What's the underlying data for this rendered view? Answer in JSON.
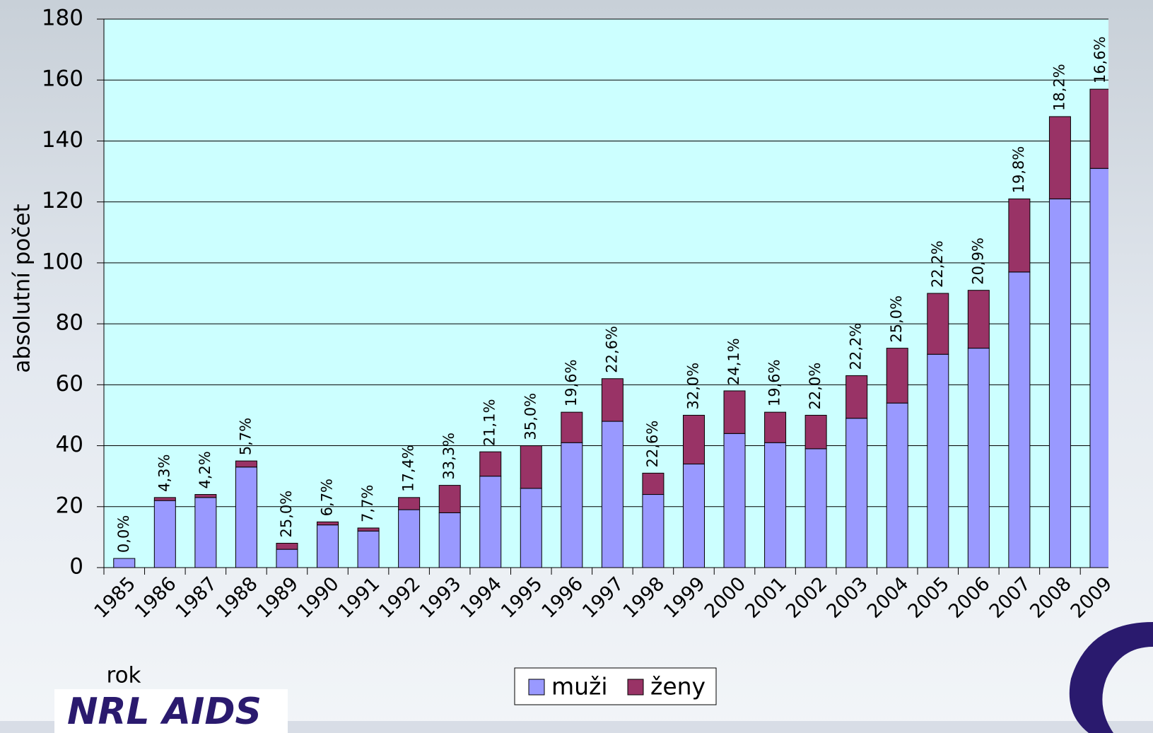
{
  "chart_data": {
    "type": "stacked_bar",
    "y_axis_label": "absolutní počet",
    "x_axis_label": "rok",
    "logo_text": "NRL AIDS",
    "categories": [
      "1985",
      "1986",
      "1987",
      "1988",
      "1989",
      "1990",
      "1991",
      "1992",
      "1993",
      "1994",
      "1995",
      "1996",
      "1997",
      "1998",
      "1999",
      "2000",
      "2001",
      "2002",
      "2003",
      "2004",
      "2005",
      "2006",
      "2007",
      "2008",
      "2009"
    ],
    "series": [
      {
        "name": "muži",
        "color": "#9999ff",
        "values": [
          3,
          22,
          23,
          33,
          6,
          14,
          12,
          19,
          18,
          30,
          26,
          41,
          48,
          24,
          34,
          44,
          41,
          39,
          49,
          54,
          70,
          72,
          97,
          121,
          131
        ]
      },
      {
        "name": "ženy",
        "color": "#993366",
        "values": [
          0,
          1,
          1,
          2,
          2,
          1,
          1,
          4,
          9,
          8,
          14,
          10,
          14,
          7,
          16,
          14,
          10,
          11,
          14,
          18,
          20,
          19,
          24,
          27,
          26
        ]
      }
    ],
    "share_labels": [
      "0,0%",
      "4,3%",
      "4,2%",
      "5,7%",
      "25,0%",
      "6,7%",
      "7,7%",
      "17,4%",
      "33,3%",
      "21,1%",
      "35,0%",
      "19,6%",
      "22,6%",
      "22,6%",
      "32,0%",
      "24,1%",
      "19,6%",
      "22,0%",
      "22,2%",
      "25,0%",
      "22,2%",
      "20,9%",
      "19,8%",
      "18,2%",
      "16,6%"
    ],
    "ylim": [
      0,
      180
    ],
    "yticks": [
      0,
      20,
      40,
      60,
      80,
      100,
      120,
      140,
      160,
      180
    ],
    "grid": true,
    "legend": "bottom"
  }
}
